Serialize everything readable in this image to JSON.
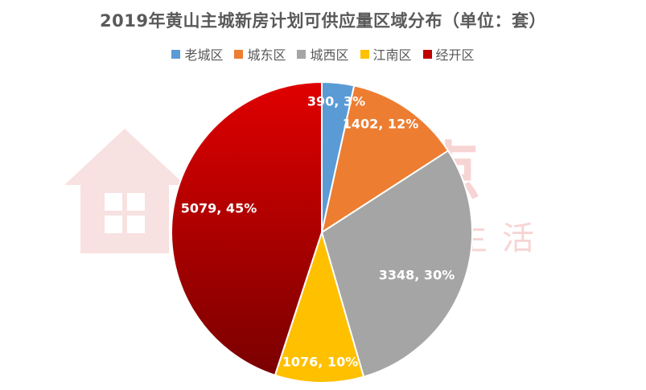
{
  "chart_data": {
    "type": "pie",
    "title": "2019年黄山主城新房计划可供应量区域分布（单位：套）",
    "legend_position": "top",
    "categories": [
      "老城区",
      "城东区",
      "城西区",
      "江南区",
      "经开区"
    ],
    "values": [
      390,
      1402,
      3348,
      1076,
      5079
    ],
    "percent_labels": [
      "3%",
      "12%",
      "30%",
      "10%",
      "45%"
    ],
    "data_labels": [
      "390, 3%",
      "1402, 12%",
      "3348, 30%",
      "1076, 10%",
      "5079, 45%"
    ],
    "colors": [
      "#5B9BD5",
      "#ED7D31",
      "#A5A5A5",
      "#FFC000",
      "#C00000"
    ]
  },
  "watermark": {
    "brand_text": "搜狐焦点",
    "slogan_text": "，爱生活"
  }
}
